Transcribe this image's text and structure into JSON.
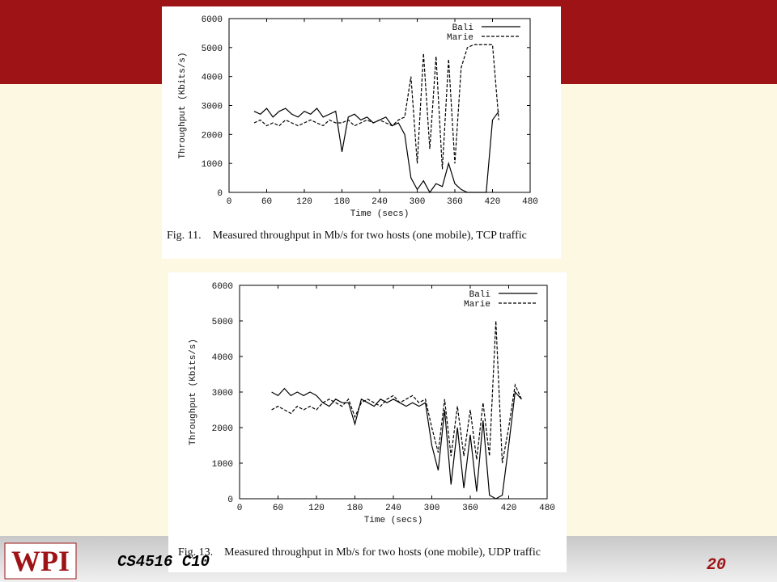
{
  "slide": {
    "logo": "WPI",
    "course": "CS4516 C10",
    "page": "20"
  },
  "chart_data": [
    {
      "type": "line",
      "x_label": "Time (secs)",
      "y_label": "Throughput (Kbits/s)",
      "caption": "Fig. 11.    Measured throughput in Mb/s for two hosts (one mobile), TCP traffic",
      "x": [
        40,
        50,
        60,
        70,
        80,
        90,
        100,
        110,
        120,
        130,
        140,
        150,
        160,
        170,
        180,
        190,
        200,
        210,
        220,
        230,
        240,
        250,
        260,
        270,
        280,
        290,
        300,
        310,
        320,
        330,
        340,
        350,
        360,
        370,
        380,
        390,
        400,
        410,
        420,
        430
      ],
      "series": [
        {
          "name": "Bali",
          "color": "#000000",
          "dash": false,
          "values": [
            2800,
            2700,
            2900,
            2600,
            2800,
            2900,
            2700,
            2600,
            2800,
            2700,
            2900,
            2600,
            2700,
            2800,
            1400,
            2600,
            2700,
            2500,
            2600,
            2400,
            2500,
            2600,
            2300,
            2400,
            2000,
            500,
            100,
            400,
            0,
            300,
            200,
            1000,
            300,
            100,
            0,
            0,
            0,
            0,
            2500,
            2800
          ]
        },
        {
          "name": "Marie",
          "color": "#000000",
          "dash": true,
          "values": [
            2400,
            2500,
            2300,
            2400,
            2300,
            2500,
            2400,
            2300,
            2400,
            2500,
            2400,
            2300,
            2500,
            2400,
            2400,
            2500,
            2300,
            2400,
            2500,
            2400,
            2500,
            2400,
            2300,
            2500,
            2600,
            4000,
            1000,
            4800,
            1500,
            4700,
            800,
            4600,
            1000,
            4300,
            5000,
            5100,
            5100,
            5100,
            5100,
            2500
          ]
        }
      ],
      "xlim": [
        0,
        480
      ],
      "xticks": [
        0,
        60,
        120,
        180,
        240,
        300,
        360,
        420,
        480
      ],
      "ylim": [
        0,
        6000
      ],
      "yticks": [
        0,
        1000,
        2000,
        3000,
        4000,
        5000,
        6000
      ],
      "legend": "upper right"
    },
    {
      "type": "line",
      "x_label": "Time (secs)",
      "y_label": "Throughput (Kbits/s)",
      "caption": "Fig. 13.    Measured throughput in Mb/s for two hosts (one mobile), UDP traffic",
      "x": [
        50,
        60,
        70,
        80,
        90,
        100,
        110,
        120,
        130,
        140,
        150,
        160,
        170,
        180,
        190,
        200,
        210,
        220,
        230,
        240,
        250,
        260,
        270,
        280,
        290,
        300,
        310,
        320,
        330,
        340,
        350,
        360,
        370,
        380,
        390,
        400,
        410,
        420,
        430,
        440
      ],
      "series": [
        {
          "name": "Bali",
          "color": "#000000",
          "dash": false,
          "values": [
            3000,
            2900,
            3100,
            2900,
            3000,
            2900,
            3000,
            2900,
            2700,
            2600,
            2800,
            2700,
            2700,
            2100,
            2800,
            2700,
            2600,
            2800,
            2700,
            2800,
            2700,
            2600,
            2700,
            2600,
            2700,
            1500,
            800,
            2500,
            400,
            2000,
            300,
            1800,
            200,
            2200,
            100,
            0,
            100,
            1500,
            3000,
            2800
          ]
        },
        {
          "name": "Marie",
          "color": "#000000",
          "dash": true,
          "values": [
            2500,
            2600,
            2500,
            2400,
            2600,
            2500,
            2600,
            2500,
            2700,
            2800,
            2700,
            2600,
            2800,
            2300,
            2700,
            2800,
            2700,
            2600,
            2800,
            2900,
            2700,
            2800,
            2900,
            2700,
            2800,
            2000,
            1300,
            2800,
            1200,
            2600,
            1200,
            2500,
            1100,
            2700,
            1200,
            5000,
            1000,
            2000,
            3200,
            2800
          ]
        }
      ],
      "xlim": [
        0,
        480
      ],
      "xticks": [
        0,
        60,
        120,
        180,
        240,
        300,
        360,
        420,
        480
      ],
      "ylim": [
        0,
        6000
      ],
      "yticks": [
        0,
        1000,
        2000,
        3000,
        4000,
        5000,
        6000
      ],
      "legend": "upper right"
    }
  ]
}
